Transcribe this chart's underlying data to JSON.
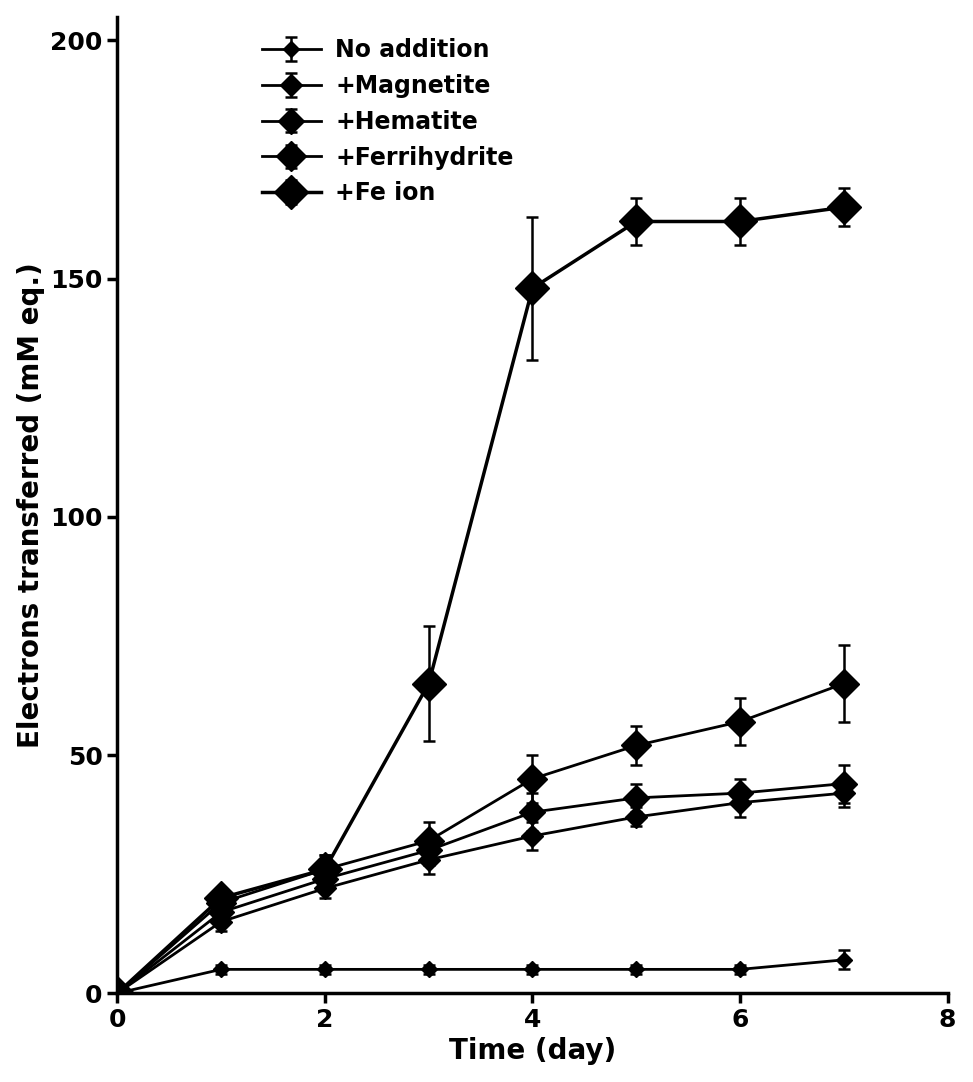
{
  "series": [
    {
      "label": "No addition",
      "x": [
        0,
        1,
        2,
        3,
        4,
        5,
        6,
        7
      ],
      "y": [
        0,
        5,
        5,
        5,
        5,
        5,
        5,
        7
      ],
      "yerr": [
        0,
        1,
        1,
        1,
        1,
        1,
        1,
        2
      ],
      "marker_size": 8,
      "lw": 2.0,
      "zorder": 2
    },
    {
      "label": "+Magnetite",
      "x": [
        0,
        1,
        2,
        3,
        4,
        5,
        6,
        7
      ],
      "y": [
        0,
        15,
        22,
        28,
        33,
        37,
        40,
        42
      ],
      "yerr": [
        0,
        2,
        2,
        3,
        3,
        2,
        3,
        3
      ],
      "marker_size": 11,
      "lw": 2.0,
      "zorder": 3
    },
    {
      "label": "+Hematite",
      "x": [
        0,
        1,
        2,
        3,
        4,
        5,
        6,
        7
      ],
      "y": [
        0,
        17,
        24,
        30,
        38,
        41,
        42,
        44
      ],
      "yerr": [
        0,
        2,
        2,
        3,
        4,
        3,
        3,
        4
      ],
      "marker_size": 13,
      "lw": 2.0,
      "zorder": 4
    },
    {
      "label": "+Ferrihydrite",
      "x": [
        0,
        1,
        2,
        3,
        4,
        5,
        6,
        7
      ],
      "y": [
        0,
        19,
        26,
        32,
        45,
        52,
        57,
        65
      ],
      "yerr": [
        0,
        2,
        3,
        4,
        5,
        4,
        5,
        8
      ],
      "marker_size": 15,
      "lw": 2.0,
      "zorder": 5
    },
    {
      "label": "+Fe ion",
      "x": [
        0,
        1,
        2,
        3,
        4,
        5,
        6,
        7
      ],
      "y": [
        0,
        20,
        26,
        65,
        148,
        162,
        162,
        165
      ],
      "yerr": [
        0,
        2,
        3,
        12,
        15,
        5,
        5,
        4
      ],
      "marker_size": 17,
      "lw": 2.5,
      "zorder": 6
    }
  ],
  "color": "#000000",
  "xlabel": "Time (day)",
  "ylabel": "Electrons transferred (mM eq.)",
  "xlim": [
    0,
    8
  ],
  "ylim": [
    0,
    205
  ],
  "xticks": [
    0,
    2,
    4,
    6,
    8
  ],
  "yticks": [
    0,
    50,
    100,
    150,
    200
  ],
  "label_fontsize": 20,
  "tick_fontsize": 18,
  "legend_fontsize": 17,
  "figsize": [
    9.73,
    10.82
  ],
  "dpi": 100
}
